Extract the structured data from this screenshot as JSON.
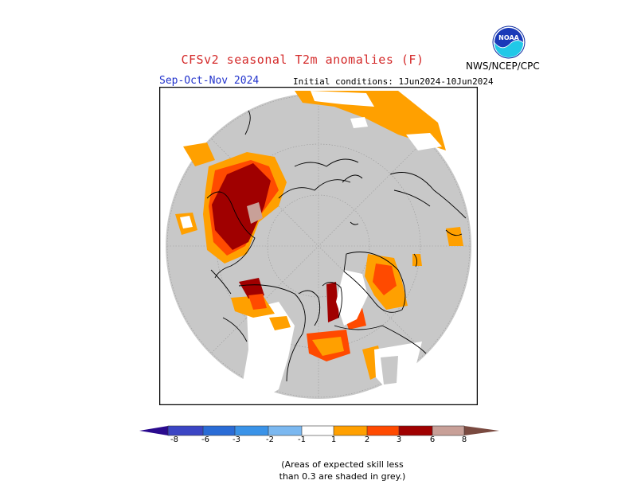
{
  "header": {
    "title": "CFSv2 seasonal T2m anomalies (F)",
    "season": "Sep-Oct-Nov 2024",
    "initial_conditions": "Initial conditions: 1Jun2024-10Jun2024",
    "agency": "NWS/NCEP/CPC",
    "logo_text": "NOAA"
  },
  "legend": {
    "tick_labels": [
      "-8",
      "-6",
      "-3",
      "-2",
      "-1",
      "1",
      "2",
      "3",
      "6",
      "8"
    ],
    "colors": {
      "below_8": "#2a0a8e",
      "m8_m6": "#3b45c4",
      "m6_m3": "#2a6cd6",
      "m3_m2": "#3a93e8",
      "m2_m1": "#7bb8f0",
      "neutral": "#ffffff",
      "p1_p2": "#ffa000",
      "p2_p3": "#ff4a00",
      "p3_p6": "#a00000",
      "p6_p8": "#c8a098",
      "above_8": "#7a4a40"
    }
  },
  "map": {
    "projection": "north-polar-stereographic",
    "background_color": "#c8c8c8",
    "low_skill_color": "#c8c8c8"
  },
  "note": {
    "line1": "(Areas of expected skill less",
    "line2": "than 0.3 are shaded in grey.)"
  }
}
